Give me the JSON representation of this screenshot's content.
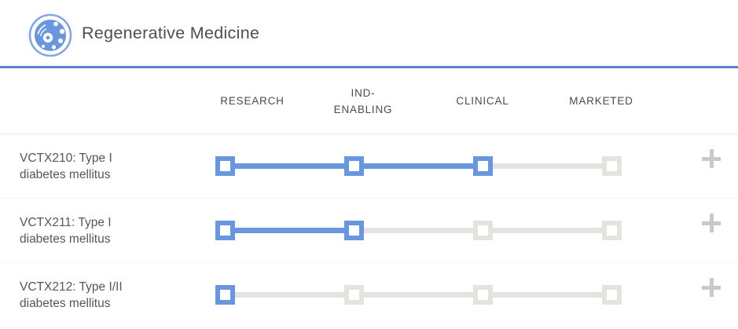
{
  "header": {
    "title": "Regenerative Medicine",
    "icon": "cell-icon"
  },
  "stage_columns": {
    "labels": [
      "RESEARCH",
      "IND-\nENABLING",
      "CLINICAL",
      "MARKETED"
    ]
  },
  "rows": [
    {
      "label": "VCTX210: Type I\ndiabetes mellitus",
      "stages_complete": 3,
      "add_icon": "plus-icon"
    },
    {
      "label": "VCTX211: Type I\ndiabetes mellitus",
      "stages_complete": 2,
      "add_icon": "plus-icon"
    },
    {
      "label": "VCTX212: Type I/II\ndiabetes mellitus",
      "stages_complete": 1,
      "add_icon": "plus-icon"
    }
  ],
  "colors": {
    "active_blue": "#6a96de",
    "inactive_gray": "#e3e3e0",
    "header_rule_blue": "#5b80c6",
    "plus_gray": "#c9c9c9"
  }
}
